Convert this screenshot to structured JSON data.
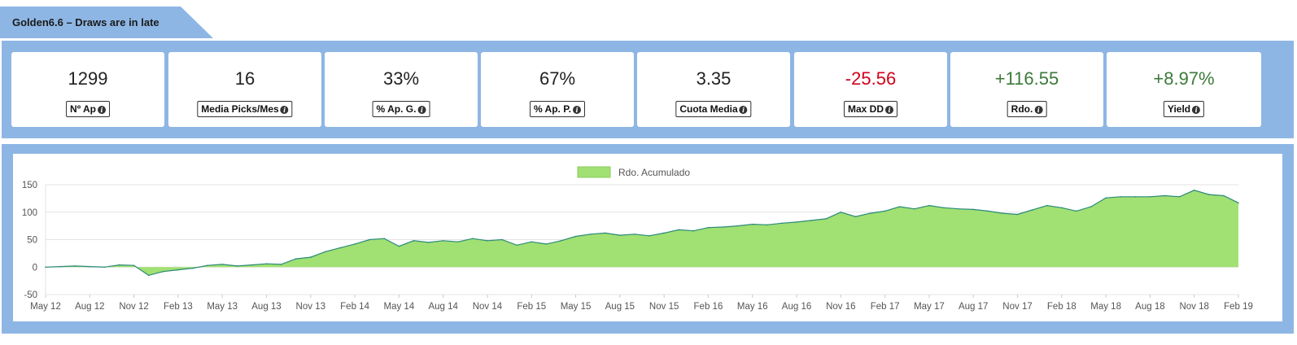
{
  "header": {
    "title": "Golden6.6 – Draws are in late"
  },
  "stats": [
    {
      "value": "1299",
      "label": "Nº Ap",
      "tone": "neutral"
    },
    {
      "value": "16",
      "label": "Media Picks/Mes",
      "tone": "neutral"
    },
    {
      "value": "33%",
      "label": "% Ap. G.",
      "tone": "neutral"
    },
    {
      "value": "67%",
      "label": "% Ap. P.",
      "tone": "neutral"
    },
    {
      "value": "3.35",
      "label": "Cuota Media",
      "tone": "neutral"
    },
    {
      "value": "-25.56",
      "label": "Max DD",
      "tone": "neg"
    },
    {
      "value": "+116.55",
      "label": "Rdo.",
      "tone": "pos"
    },
    {
      "value": "+8.97%",
      "label": "Yield",
      "tone": "pos"
    }
  ],
  "icons": {
    "info": "info-circle-icon"
  },
  "colors": {
    "panel_bg": "#8eb6e4",
    "area_fill": "#a1e072",
    "area_line": "#2a8a7a",
    "negative": "#d0021b",
    "positive": "#3d7a3a"
  },
  "chart_data": {
    "type": "area",
    "legend": {
      "label": "Rdo. Acumulado",
      "position": "top-center"
    },
    "grid": true,
    "ylim": [
      -50,
      150
    ],
    "yticks": [
      -50,
      0,
      50,
      100,
      150
    ],
    "xtick_labels": [
      "May 12",
      "Aug 12",
      "Nov 12",
      "Feb 13",
      "May 13",
      "Aug 13",
      "Nov 13",
      "Feb 14",
      "May 14",
      "Aug 14",
      "Nov 14",
      "Feb 15",
      "May 15",
      "Aug 15",
      "Nov 15",
      "Feb 16",
      "May 16",
      "Aug 16",
      "Nov 16",
      "Feb 17",
      "May 17",
      "Aug 17",
      "Nov 17",
      "Feb 18",
      "May 18",
      "Aug 18",
      "Nov 18",
      "Feb 19"
    ],
    "series": [
      {
        "name": "Rdo. Acumulado",
        "x": [
          "May 12",
          "Jun 12",
          "Jul 12",
          "Aug 12",
          "Sep 12",
          "Oct 12",
          "Nov 12",
          "Dec 12",
          "Jan 13",
          "Feb 13",
          "Mar 13",
          "Apr 13",
          "May 13",
          "Jun 13",
          "Jul 13",
          "Aug 13",
          "Sep 13",
          "Oct 13",
          "Nov 13",
          "Dec 13",
          "Jan 14",
          "Feb 14",
          "Mar 14",
          "Apr 14",
          "May 14",
          "Jun 14",
          "Jul 14",
          "Aug 14",
          "Sep 14",
          "Oct 14",
          "Nov 14",
          "Dec 14",
          "Jan 15",
          "Feb 15",
          "Mar 15",
          "Apr 15",
          "May 15",
          "Jun 15",
          "Jul 15",
          "Aug 15",
          "Sep 15",
          "Oct 15",
          "Nov 15",
          "Dec 15",
          "Jan 16",
          "Feb 16",
          "Mar 16",
          "Apr 16",
          "May 16",
          "Jun 16",
          "Jul 16",
          "Aug 16",
          "Sep 16",
          "Oct 16",
          "Nov 16",
          "Dec 16",
          "Jan 17",
          "Feb 17",
          "Mar 17",
          "Apr 17",
          "May 17",
          "Jun 17",
          "Jul 17",
          "Aug 17",
          "Sep 17",
          "Oct 17",
          "Nov 17",
          "Dec 17",
          "Jan 18",
          "Feb 18",
          "Mar 18",
          "Apr 18",
          "May 18",
          "Jun 18",
          "Jul 18",
          "Aug 18",
          "Sep 18",
          "Oct 18",
          "Nov 18",
          "Dec 18",
          "Jan 19",
          "Feb 19"
        ],
        "values": [
          0,
          1,
          2,
          1,
          0,
          4,
          3,
          -15,
          -8,
          -5,
          -2,
          3,
          5,
          2,
          4,
          6,
          5,
          15,
          18,
          28,
          35,
          42,
          50,
          52,
          38,
          48,
          45,
          48,
          46,
          52,
          48,
          50,
          40,
          46,
          42,
          48,
          56,
          60,
          62,
          58,
          60,
          57,
          62,
          68,
          66,
          72,
          73,
          75,
          78,
          77,
          80,
          82,
          85,
          88,
          100,
          92,
          98,
          102,
          110,
          106,
          112,
          108,
          106,
          105,
          102,
          98,
          96,
          104,
          112,
          108,
          102,
          110,
          126,
          128,
          128,
          128,
          130,
          128,
          140,
          132,
          130,
          117
        ]
      }
    ]
  }
}
